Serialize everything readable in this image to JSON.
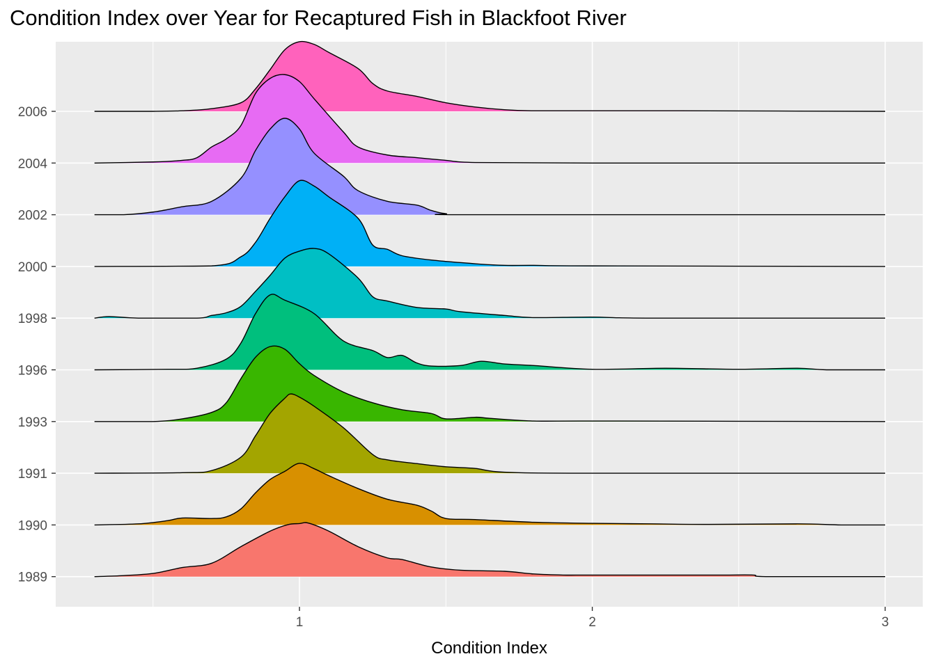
{
  "chart_data": {
    "type": "area",
    "subtype": "ridgeline",
    "title": "Condition Index over Year for Recaptured Fish in Blackfoot River",
    "xlabel": "Condition Index",
    "ylabel": "",
    "xlim": [
      0.3,
      3.0
    ],
    "x_ticks": [
      1,
      2,
      3
    ],
    "grid": true,
    "legend": "none",
    "panel_color": "#EBEBEB",
    "series": [
      {
        "name": "1989",
        "color": "#F8766D",
        "peak_height": 1.0,
        "points": [
          [
            0.3,
            0
          ],
          [
            0.4,
            0.02
          ],
          [
            0.5,
            0.06
          ],
          [
            0.6,
            0.17
          ],
          [
            0.7,
            0.25
          ],
          [
            0.8,
            0.56
          ],
          [
            0.9,
            0.85
          ],
          [
            0.96,
            0.97
          ],
          [
            1.0,
            0.99
          ],
          [
            1.03,
            1.0
          ],
          [
            1.1,
            0.85
          ],
          [
            1.2,
            0.56
          ],
          [
            1.3,
            0.35
          ],
          [
            1.35,
            0.32
          ],
          [
            1.45,
            0.18
          ],
          [
            1.55,
            0.12
          ],
          [
            1.7,
            0.1
          ],
          [
            1.8,
            0.05
          ],
          [
            1.9,
            0.03
          ],
          [
            2.0,
            0.03
          ],
          [
            2.3,
            0.03
          ],
          [
            2.45,
            0.03
          ],
          [
            2.55,
            0.03
          ],
          [
            2.6,
            0.0
          ],
          [
            3.0,
            0.0
          ]
        ]
      },
      {
        "name": "1990",
        "color": "#D89000",
        "peak_height": 1.15,
        "points": [
          [
            0.3,
            0
          ],
          [
            0.45,
            0.02
          ],
          [
            0.55,
            0.08
          ],
          [
            0.6,
            0.13
          ],
          [
            0.7,
            0.12
          ],
          [
            0.75,
            0.15
          ],
          [
            0.8,
            0.3
          ],
          [
            0.85,
            0.6
          ],
          [
            0.9,
            0.85
          ],
          [
            0.95,
            1.0
          ],
          [
            1.0,
            1.15
          ],
          [
            1.05,
            1.05
          ],
          [
            1.1,
            0.92
          ],
          [
            1.2,
            0.68
          ],
          [
            1.3,
            0.48
          ],
          [
            1.4,
            0.37
          ],
          [
            1.45,
            0.26
          ],
          [
            1.5,
            0.12
          ],
          [
            1.6,
            0.1
          ],
          [
            1.8,
            0.05
          ],
          [
            2.0,
            0.03
          ],
          [
            2.2,
            0.02
          ],
          [
            2.4,
            0.01
          ],
          [
            2.7,
            0.02
          ],
          [
            2.85,
            0
          ],
          [
            3.0,
            0
          ]
        ]
      },
      {
        "name": "1991",
        "color": "#A3A500",
        "peak_height": 1.5,
        "points": [
          [
            0.3,
            0
          ],
          [
            0.6,
            0.01
          ],
          [
            0.7,
            0.05
          ],
          [
            0.8,
            0.3
          ],
          [
            0.85,
            0.7
          ],
          [
            0.9,
            1.12
          ],
          [
            0.95,
            1.4
          ],
          [
            0.97,
            1.48
          ],
          [
            1.0,
            1.42
          ],
          [
            1.05,
            1.25
          ],
          [
            1.15,
            0.85
          ],
          [
            1.25,
            0.35
          ],
          [
            1.3,
            0.25
          ],
          [
            1.4,
            0.18
          ],
          [
            1.5,
            0.12
          ],
          [
            1.6,
            0.09
          ],
          [
            1.7,
            0.02
          ],
          [
            2.0,
            0
          ],
          [
            3.0,
            0
          ]
        ]
      },
      {
        "name": "1993",
        "color": "#39B600",
        "peak_height": 1.4,
        "points": [
          [
            0.3,
            0
          ],
          [
            0.5,
            0.0
          ],
          [
            0.6,
            0.05
          ],
          [
            0.7,
            0.17
          ],
          [
            0.75,
            0.35
          ],
          [
            0.8,
            0.8
          ],
          [
            0.85,
            1.2
          ],
          [
            0.9,
            1.4
          ],
          [
            0.95,
            1.35
          ],
          [
            1.0,
            1.08
          ],
          [
            1.05,
            0.86
          ],
          [
            1.15,
            0.55
          ],
          [
            1.25,
            0.35
          ],
          [
            1.35,
            0.22
          ],
          [
            1.45,
            0.15
          ],
          [
            1.5,
            0.05
          ],
          [
            1.6,
            0.08
          ],
          [
            1.65,
            0.06
          ],
          [
            1.8,
            0.01
          ],
          [
            2.0,
            0.01
          ],
          [
            3.0,
            0
          ]
        ]
      },
      {
        "name": "1996",
        "color": "#00BF7D",
        "peak_height": 1.45,
        "points": [
          [
            0.3,
            0
          ],
          [
            0.55,
            0.01
          ],
          [
            0.65,
            0.03
          ],
          [
            0.75,
            0.2
          ],
          [
            0.8,
            0.5
          ],
          [
            0.85,
            1.05
          ],
          [
            0.9,
            1.4
          ],
          [
            0.95,
            1.3
          ],
          [
            1.05,
            1.05
          ],
          [
            1.15,
            0.54
          ],
          [
            1.25,
            0.36
          ],
          [
            1.3,
            0.23
          ],
          [
            1.35,
            0.27
          ],
          [
            1.4,
            0.13
          ],
          [
            1.45,
            0.07
          ],
          [
            1.55,
            0.08
          ],
          [
            1.62,
            0.16
          ],
          [
            1.7,
            0.11
          ],
          [
            1.8,
            0.08
          ],
          [
            2.0,
            0.01
          ],
          [
            2.25,
            0.03
          ],
          [
            2.5,
            0.01
          ],
          [
            2.7,
            0.03
          ],
          [
            2.8,
            0
          ],
          [
            3.0,
            0
          ]
        ]
      },
      {
        "name": "1998",
        "color": "#00BFC4",
        "peak_height": 1.35,
        "points": [
          [
            0.3,
            0
          ],
          [
            0.35,
            0.03
          ],
          [
            0.45,
            0
          ],
          [
            0.65,
            0
          ],
          [
            0.7,
            0.05
          ],
          [
            0.75,
            0.1
          ],
          [
            0.8,
            0.22
          ],
          [
            0.85,
            0.5
          ],
          [
            0.9,
            0.8
          ],
          [
            0.95,
            1.12
          ],
          [
            1.0,
            1.25
          ],
          [
            1.05,
            1.3
          ],
          [
            1.1,
            1.2
          ],
          [
            1.2,
            0.75
          ],
          [
            1.25,
            0.4
          ],
          [
            1.3,
            0.32
          ],
          [
            1.4,
            0.2
          ],
          [
            1.5,
            0.17
          ],
          [
            1.55,
            0.12
          ],
          [
            1.7,
            0.05
          ],
          [
            1.8,
            0.01
          ],
          [
            2.0,
            0.02
          ],
          [
            2.2,
            0
          ],
          [
            3.0,
            0
          ]
        ]
      },
      {
        "name": "2000",
        "color": "#00B0F6",
        "peak_height": 1.6,
        "points": [
          [
            0.3,
            0
          ],
          [
            0.7,
            0.01
          ],
          [
            0.8,
            0.18
          ],
          [
            0.85,
            0.45
          ],
          [
            0.9,
            0.9
          ],
          [
            0.95,
            1.3
          ],
          [
            1.0,
            1.6
          ],
          [
            1.05,
            1.5
          ],
          [
            1.1,
            1.3
          ],
          [
            1.2,
            0.9
          ],
          [
            1.25,
            0.4
          ],
          [
            1.3,
            0.32
          ],
          [
            1.35,
            0.2
          ],
          [
            1.45,
            0.12
          ],
          [
            1.6,
            0.05
          ],
          [
            1.7,
            0.02
          ],
          [
            1.8,
            0.02
          ],
          [
            2.0,
            0.01
          ],
          [
            3.0,
            0
          ]
        ]
      },
      {
        "name": "2002",
        "color": "#9590FF",
        "peak_height": 1.8,
        "points": [
          [
            0.3,
            0
          ],
          [
            0.4,
            0
          ],
          [
            0.5,
            0.05
          ],
          [
            0.6,
            0.15
          ],
          [
            0.7,
            0.25
          ],
          [
            0.8,
            0.68
          ],
          [
            0.85,
            1.2
          ],
          [
            0.9,
            1.6
          ],
          [
            0.95,
            1.8
          ],
          [
            1.0,
            1.6
          ],
          [
            1.05,
            1.15
          ],
          [
            1.15,
            0.72
          ],
          [
            1.2,
            0.45
          ],
          [
            1.3,
            0.25
          ],
          [
            1.4,
            0.18
          ],
          [
            1.45,
            0.08
          ],
          [
            1.5,
            0.02
          ],
          [
            1.6,
            0
          ],
          [
            3.0,
            0
          ]
        ]
      },
      {
        "name": "2004",
        "color": "#E76BF3",
        "peak_height": 1.65,
        "points": [
          [
            0.3,
            0
          ],
          [
            0.5,
            0.02
          ],
          [
            0.6,
            0.05
          ],
          [
            0.65,
            0.1
          ],
          [
            0.7,
            0.3
          ],
          [
            0.75,
            0.45
          ],
          [
            0.8,
            0.7
          ],
          [
            0.85,
            1.3
          ],
          [
            0.9,
            1.58
          ],
          [
            0.95,
            1.65
          ],
          [
            1.0,
            1.52
          ],
          [
            1.05,
            1.2
          ],
          [
            1.15,
            0.58
          ],
          [
            1.2,
            0.3
          ],
          [
            1.3,
            0.15
          ],
          [
            1.4,
            0.1
          ],
          [
            1.5,
            0.05
          ],
          [
            1.6,
            0.01
          ],
          [
            2.0,
            0
          ],
          [
            3.0,
            0
          ]
        ]
      },
      {
        "name": "2006",
        "color": "#FF62BC",
        "peak_height": 1.3,
        "points": [
          [
            0.3,
            0
          ],
          [
            0.5,
            0
          ],
          [
            0.6,
            0.01
          ],
          [
            0.7,
            0.05
          ],
          [
            0.8,
            0.16
          ],
          [
            0.85,
            0.42
          ],
          [
            0.9,
            0.78
          ],
          [
            0.95,
            1.15
          ],
          [
            1.0,
            1.3
          ],
          [
            1.05,
            1.25
          ],
          [
            1.1,
            1.1
          ],
          [
            1.2,
            0.8
          ],
          [
            1.25,
            0.52
          ],
          [
            1.3,
            0.38
          ],
          [
            1.4,
            0.28
          ],
          [
            1.5,
            0.16
          ],
          [
            1.6,
            0.08
          ],
          [
            1.7,
            0.03
          ],
          [
            1.8,
            0.01
          ],
          [
            2.0,
            0.01
          ],
          [
            2.3,
            0.01
          ],
          [
            3.0,
            0
          ]
        ]
      }
    ]
  }
}
